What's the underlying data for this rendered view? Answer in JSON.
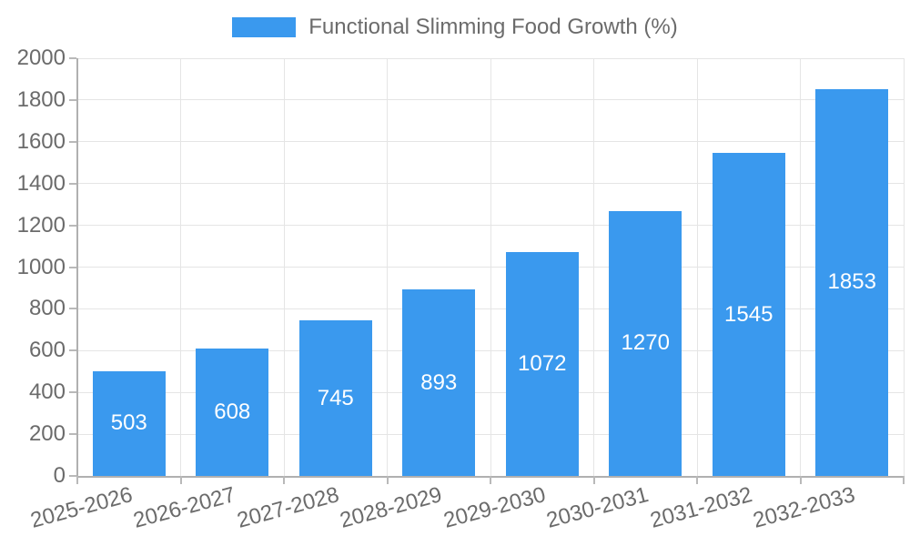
{
  "legend": {
    "label": "Functional Slimming Food Growth (%)"
  },
  "colors": {
    "bar": "#3a99ee",
    "grid": "#e5e5e5",
    "axis": "#b0b0b0",
    "tick": "#b9b9b9",
    "tick_text": "#6b6b6b",
    "value_label": "#ffffff",
    "background": "#ffffff"
  },
  "chart_data": {
    "type": "bar",
    "title": "Functional Slimming Food Growth (%)",
    "categories": [
      "2025-2026",
      "2026-2027",
      "2027-2028",
      "2028-2029",
      "2029-2030",
      "2030-2031",
      "2031-2032",
      "2032-2033"
    ],
    "series": [
      {
        "name": "Functional Slimming Food Growth (%)",
        "values": [
          503,
          608,
          745,
          893,
          1072,
          1270,
          1545,
          1853
        ]
      }
    ],
    "value_labels": [
      "503",
      "608",
      "745",
      "893",
      "1072",
      "1270",
      "1545",
      "1853"
    ],
    "xlabel": "",
    "ylabel": "",
    "ylim": [
      0,
      2000
    ],
    "yticks": [
      0,
      200,
      400,
      600,
      800,
      1000,
      1200,
      1400,
      1600,
      1800,
      2000
    ],
    "grid": true,
    "legend_position": "top",
    "xtick_rotation_deg": -15
  }
}
